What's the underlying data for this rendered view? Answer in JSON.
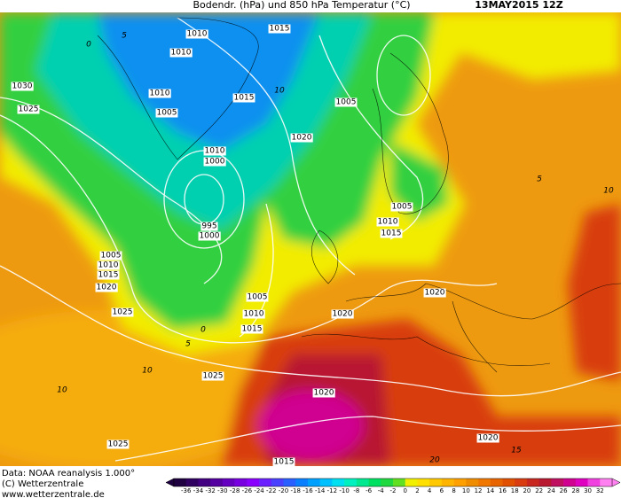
{
  "header": {
    "title": "Bodendr. (hPa) und 850 hPa Temperatur (°C)",
    "date": "13MAY2015 12Z"
  },
  "isobar_labels": [
    "1010",
    "1015",
    "1010",
    "1030",
    "1010",
    "1015",
    "1025",
    "1005",
    "1005",
    "1020",
    "1010",
    "1000",
    "995",
    "1000",
    "1005",
    "1010",
    "1015",
    "1005",
    "1010",
    "1015",
    "1020",
    "1025",
    "1005",
    "1010",
    "1015",
    "1020",
    "1020",
    "1025",
    "1020",
    "1025",
    "1020",
    "1015"
  ],
  "isotherm_labels": [
    "0",
    "5",
    "10",
    "5",
    "10",
    "0",
    "5",
    "10",
    "10",
    "15",
    "20"
  ],
  "footer": {
    "source": "Data: NOAA reanalysis 1.000°",
    "copyright": "(C) Wetterzentrale",
    "website": "www.wetterzentrale.de"
  },
  "colorbar": {
    "labels": [
      "-36",
      "-34",
      "-32",
      "-30",
      "-28",
      "-26",
      "-24",
      "-22",
      "-20",
      "-18",
      "-16",
      "-14",
      "-12",
      "-10",
      "-8",
      "-6",
      "-4",
      "-2",
      "0",
      "2",
      "4",
      "6",
      "8",
      "10",
      "12",
      "14",
      "16",
      "18",
      "20",
      "22",
      "24",
      "26",
      "28",
      "30",
      "32"
    ],
    "colors": [
      "#1e0040",
      "#300060",
      "#420080",
      "#5400a0",
      "#6600c0",
      "#7800e0",
      "#8a00ff",
      "#6a20ff",
      "#4a40ff",
      "#2a60ff",
      "#0a80ff",
      "#00a0ff",
      "#00c0ff",
      "#00e0f0",
      "#00f0c0",
      "#00e890",
      "#00e060",
      "#20d840",
      "#60e020",
      "#f0f000",
      "#ffe000",
      "#ffc800",
      "#ffb400",
      "#ffa000",
      "#f08c00",
      "#f07800",
      "#e86400",
      "#e05000",
      "#d83c10",
      "#c82820",
      "#b81830",
      "#c01060",
      "#d00090",
      "#e000c0",
      "#f040e0",
      "#ff80f0"
    ]
  }
}
